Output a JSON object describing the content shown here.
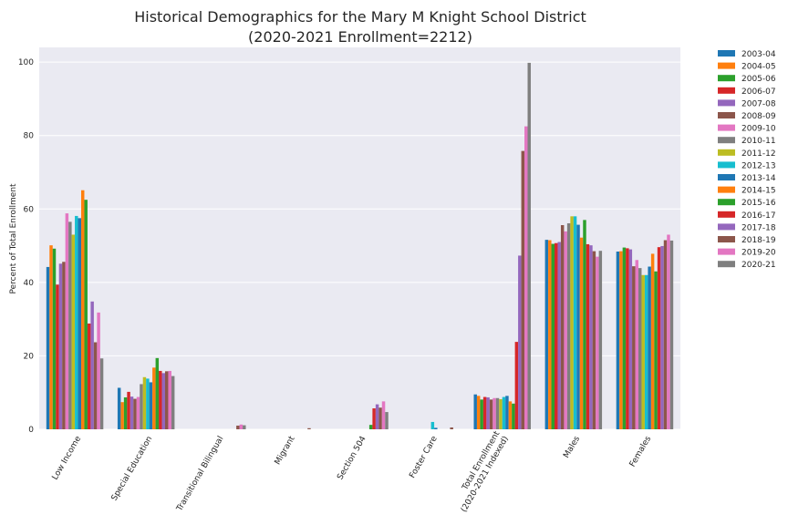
{
  "chart_data": {
    "type": "bar",
    "title_lines": [
      "Historical Demographics for the Mary M Knight School District",
      "(2020-2021 Enrollment=2212)"
    ],
    "ylabel": "Percent of Total Enrollment",
    "xlabel": "",
    "ylim": [
      0,
      104
    ],
    "yticks": [
      "0",
      "20",
      "40",
      "60",
      "80",
      "100"
    ],
    "ytick_values": [
      0,
      20,
      40,
      60,
      80,
      100
    ],
    "grid": true,
    "legend_position": "outside-right",
    "categories": [
      [
        "Low Income"
      ],
      [
        "Special Education"
      ],
      [
        "Transitional Bilingual"
      ],
      [
        "Migrant"
      ],
      [
        "Section 504"
      ],
      [
        "Foster Care"
      ],
      [
        "Total Enrollment",
        "(2020-2021 Indexed)"
      ],
      [
        "Males"
      ],
      [
        "Females"
      ]
    ],
    "colors": [
      "#1f77b4",
      "#ff7f0e",
      "#2ca02c",
      "#d62728",
      "#9467bd",
      "#8c564b",
      "#e377c2",
      "#7f7f7f",
      "#bcbd22",
      "#17becf",
      "#1f77b4",
      "#ff7f0e",
      "#2ca02c",
      "#d62728",
      "#9467bd",
      "#8c564b",
      "#e377c2",
      "#7f7f7f"
    ],
    "series": [
      {
        "name": "2003-04",
        "values": [
          44.2,
          11.3,
          0,
          0,
          0,
          0,
          9.5,
          51.6,
          48.4
        ]
      },
      {
        "name": "2004-05",
        "values": [
          50.1,
          7.4,
          0,
          0,
          0,
          0,
          9.1,
          51.5,
          48.5
        ]
      },
      {
        "name": "2005-06",
        "values": [
          49.2,
          8.7,
          0,
          0,
          0,
          0,
          8.1,
          50.5,
          49.5
        ]
      },
      {
        "name": "2006-07",
        "values": [
          39.4,
          10.2,
          0,
          0,
          0,
          0,
          8.8,
          50.7,
          49.3
        ]
      },
      {
        "name": "2007-08",
        "values": [
          45.1,
          8.9,
          0,
          0,
          0,
          0,
          8.7,
          51.0,
          49.0
        ]
      },
      {
        "name": "2008-09",
        "values": [
          45.6,
          8.3,
          0,
          0,
          0,
          0,
          8.1,
          55.6,
          44.4
        ]
      },
      {
        "name": "2009-10",
        "values": [
          58.8,
          8.8,
          0,
          0,
          0,
          0,
          8.5,
          53.9,
          46.1
        ]
      },
      {
        "name": "2010-11",
        "values": [
          56.5,
          12.3,
          0,
          0,
          0,
          0,
          8.5,
          56.1,
          43.9
        ]
      },
      {
        "name": "2011-12",
        "values": [
          53.0,
          14.2,
          0,
          0,
          0,
          0,
          8.2,
          58.0,
          42.0
        ]
      },
      {
        "name": "2012-13",
        "values": [
          58.1,
          13.8,
          0,
          0,
          0,
          2.0,
          8.8,
          58.0,
          42.0
        ]
      },
      {
        "name": "2013-14",
        "values": [
          57.5,
          12.8,
          0,
          0,
          0,
          0.4,
          9.1,
          55.7,
          44.3
        ]
      },
      {
        "name": "2014-15",
        "values": [
          65.1,
          16.8,
          0,
          0,
          0,
          0,
          7.6,
          52.2,
          47.8
        ]
      },
      {
        "name": "2015-16",
        "values": [
          62.5,
          19.4,
          0,
          0,
          1.2,
          0,
          7.0,
          57.0,
          43.0
        ]
      },
      {
        "name": "2016-17",
        "values": [
          28.8,
          15.9,
          0,
          0,
          5.7,
          0,
          23.8,
          50.4,
          49.6
        ]
      },
      {
        "name": "2017-18",
        "values": [
          34.8,
          15.3,
          0,
          0,
          6.8,
          0,
          47.3,
          50.1,
          49.9
        ]
      },
      {
        "name": "2018-19",
        "values": [
          23.7,
          15.8,
          1.0,
          0.3,
          5.9,
          0.5,
          75.8,
          48.5,
          51.5
        ]
      },
      {
        "name": "2019-20",
        "values": [
          31.8,
          15.9,
          1.3,
          0,
          7.6,
          0,
          82.5,
          47.0,
          53.0
        ]
      },
      {
        "name": "2020-21",
        "values": [
          19.3,
          14.5,
          1.1,
          0,
          4.7,
          0,
          99.8,
          48.6,
          51.4
        ]
      }
    ]
  }
}
